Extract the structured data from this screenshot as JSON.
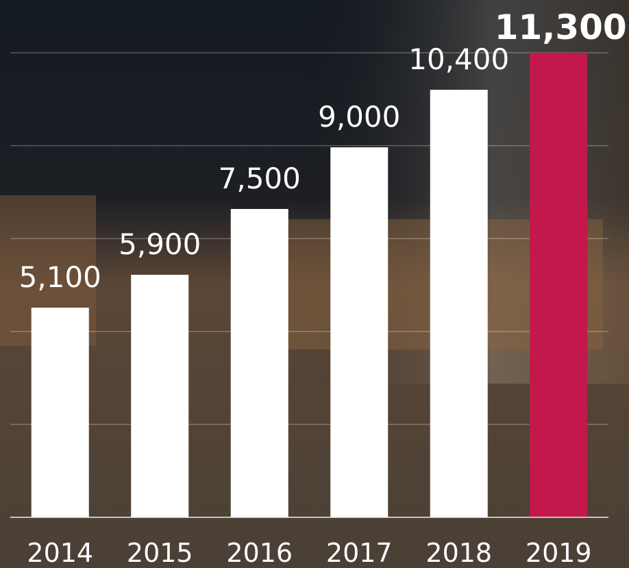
{
  "chart_data": {
    "type": "bar",
    "categories": [
      "2014",
      "2015",
      "2016",
      "2017",
      "2018",
      "2019"
    ],
    "values": [
      5100,
      5900,
      7500,
      9000,
      10400,
      11300
    ],
    "value_labels": [
      "5,100",
      "5,900",
      "7,500",
      "9,000",
      "10,400",
      "11,300"
    ],
    "colors": [
      "#ffffff",
      "#ffffff",
      "#ffffff",
      "#ffffff",
      "#ffffff",
      "#c2184b"
    ],
    "ylim": [
      0,
      11300
    ],
    "yticks": [
      0,
      2260,
      4520,
      6780,
      9040,
      11300
    ],
    "grid": true
  }
}
